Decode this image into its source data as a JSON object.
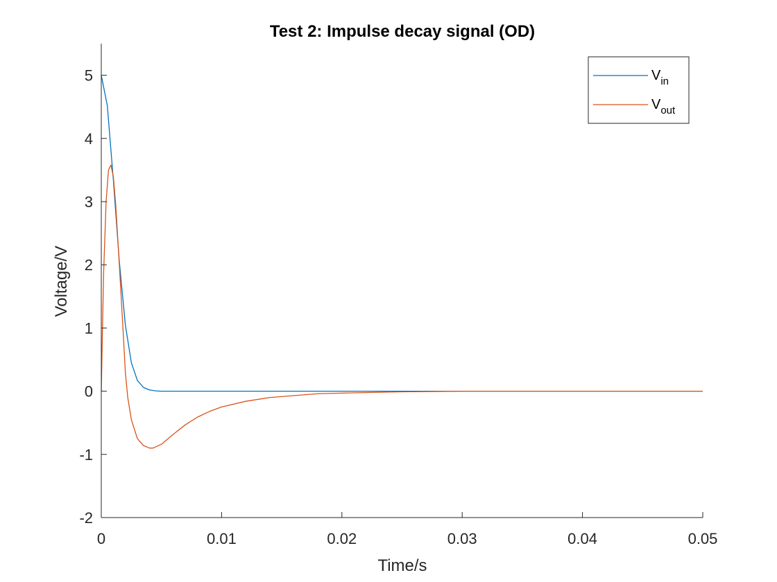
{
  "chart_data": {
    "type": "line",
    "title": "Test 2: Impulse decay signal (OD)",
    "xlabel": "Time/s",
    "ylabel": "Voltage/V",
    "xlim": [
      0,
      0.05
    ],
    "ylim": [
      -2,
      5.5
    ],
    "xticks": [
      0,
      0.01,
      0.02,
      0.03,
      0.04,
      0.05
    ],
    "xtick_labels": [
      "0",
      "0.01",
      "0.02",
      "0.03",
      "0.04",
      "0.05"
    ],
    "yticks": [
      -2,
      -1,
      0,
      1,
      2,
      3,
      4,
      5
    ],
    "ytick_labels": [
      "-2",
      "-1",
      "0",
      "1",
      "2",
      "3",
      "4",
      "5"
    ],
    "grid": false,
    "legend_position": "top-right",
    "series": [
      {
        "name": "V",
        "name_subscript": "in",
        "color": "#0072BD",
        "x": [
          0,
          0.0005,
          0.001,
          0.0015,
          0.002,
          0.0025,
          0.003,
          0.0035,
          0.004,
          0.0045,
          0.005,
          0.006,
          0.01,
          0.02,
          0.03,
          0.04,
          0.05
        ],
        "y": [
          5.0,
          4.52,
          3.35,
          2.05,
          1.05,
          0.45,
          0.17,
          0.06,
          0.02,
          0.005,
          0.0,
          0.0,
          0.0,
          0.0,
          0.0,
          0.0,
          0.0
        ]
      },
      {
        "name": "V",
        "name_subscript": "out",
        "color": "#D95319",
        "x": [
          0,
          0.0001,
          0.0002,
          0.0004,
          0.0006,
          0.0008,
          0.001,
          0.0012,
          0.0015,
          0.0018,
          0.002,
          0.0022,
          0.0025,
          0.003,
          0.0035,
          0.004,
          0.0043,
          0.005,
          0.006,
          0.007,
          0.008,
          0.009,
          0.01,
          0.012,
          0.014,
          0.016,
          0.018,
          0.02,
          0.025,
          0.03,
          0.035,
          0.04,
          0.045,
          0.05
        ],
        "y": [
          0,
          1.0,
          1.9,
          3.0,
          3.5,
          3.58,
          3.4,
          2.95,
          2.0,
          1.0,
          0.3,
          -0.1,
          -0.45,
          -0.75,
          -0.86,
          -0.9,
          -0.9,
          -0.84,
          -0.68,
          -0.53,
          -0.41,
          -0.32,
          -0.25,
          -0.16,
          -0.1,
          -0.07,
          -0.04,
          -0.03,
          -0.01,
          0.0,
          0.0,
          0.0,
          0.0,
          0.0
        ]
      }
    ]
  }
}
